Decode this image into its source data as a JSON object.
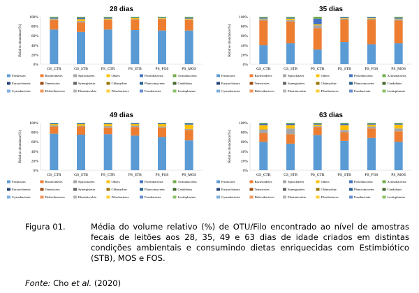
{
  "legend": [
    {
      "name": "Firmicutes",
      "color": "#5b9bd5"
    },
    {
      "name": "Bacteroidetes",
      "color": "#ed7d31"
    },
    {
      "name": "Spirochaetes",
      "color": "#a5a5a5"
    },
    {
      "name": "Others",
      "color": "#ffc000"
    },
    {
      "name": "Proteobacteria",
      "color": "#4472c4"
    },
    {
      "name": "Actinobacteria",
      "color": "#70ad47"
    },
    {
      "name": "Euryarchaeota",
      "color": "#264478"
    },
    {
      "name": "Tenericutes",
      "color": "#9e480e"
    },
    {
      "name": "Synergistetes",
      "color": "#636363"
    },
    {
      "name": "Chlamydiae",
      "color": "#997300"
    },
    {
      "name": "Planctomycetes",
      "color": "#255e91"
    },
    {
      "name": "Candidatus",
      "color": "#43682b"
    },
    {
      "name": "Cyanobacteria",
      "color": "#7cafdd"
    },
    {
      "name": "Deferribacteres",
      "color": "#f1975a"
    },
    {
      "name": "Elusimicrobia",
      "color": "#b7b7b7"
    },
    {
      "name": "Fibrobacteres",
      "color": "#ffcd33"
    },
    {
      "name": "Fusobacteria",
      "color": "#698ed0"
    },
    {
      "name": "Lentisphaerae",
      "color": "#8cc168"
    }
  ],
  "chart_data": [
    {
      "type": "bar",
      "stacked": true,
      "title": "28 dias",
      "ylabel": "Relative abundance(%)",
      "ylim": [
        0,
        100
      ],
      "yticks": [
        "0%",
        "20%",
        "40%",
        "60%",
        "80%",
        "100%"
      ],
      "categories": [
        "GS_CTR",
        "GS_STB",
        "PS_CTR",
        "PS_STB",
        "PS_FOS",
        "PS_MOS"
      ],
      "series": [
        {
          "name": "Firmicutes",
          "values": [
            73,
            68,
            73,
            72,
            71,
            71
          ]
        },
        {
          "name": "Bacteroidetes",
          "values": [
            20,
            20,
            20,
            22,
            24,
            22
          ]
        },
        {
          "name": "Spirochaetes",
          "values": [
            2,
            3,
            1,
            1,
            1,
            1
          ]
        },
        {
          "name": "Others",
          "values": [
            1,
            4,
            2,
            2,
            1,
            2
          ]
        },
        {
          "name": "Proteobacteria",
          "values": [
            2,
            3,
            2,
            1,
            1,
            2
          ]
        },
        {
          "name": "Actinobacteria",
          "values": [
            2,
            2,
            2,
            2,
            2,
            2
          ]
        }
      ]
    },
    {
      "type": "bar",
      "stacked": true,
      "title": "35 dias",
      "ylabel": "Relative abundance(%)",
      "ylim": [
        0,
        100
      ],
      "yticks": [
        "0%",
        "20%",
        "40%",
        "60%",
        "80%",
        "100%"
      ],
      "categories": [
        "GS_CTR",
        "GS_STB",
        "PS_CTR",
        "PS_STB",
        "PS_FOS",
        "PS_MOS"
      ],
      "series": [
        {
          "name": "Firmicutes",
          "values": [
            40,
            44,
            31,
            47,
            42,
            44
          ]
        },
        {
          "name": "Bacteroidetes",
          "values": [
            52,
            46,
            45,
            47,
            52,
            48
          ]
        },
        {
          "name": "Spirochaetes",
          "values": [
            3,
            3,
            6,
            2,
            2,
            3
          ]
        },
        {
          "name": "Others",
          "values": [
            1,
            3,
            2,
            1,
            1,
            1
          ]
        },
        {
          "name": "Proteobacteria",
          "values": [
            2,
            2,
            12,
            2,
            2,
            2
          ]
        },
        {
          "name": "Actinobacteria",
          "values": [
            2,
            2,
            4,
            1,
            1,
            2
          ]
        }
      ]
    },
    {
      "type": "bar",
      "stacked": true,
      "title": "49 dias",
      "ylabel": "Relative abundance(%)",
      "ylim": [
        0,
        100
      ],
      "yticks": [
        "0%",
        "20%",
        "40%",
        "60%",
        "80%",
        "100%"
      ],
      "categories": [
        "GS_CTR",
        "GS_STB",
        "PS_CTR",
        "PS_STB",
        "PS_FOS",
        "PS_MOS"
      ],
      "series": [
        {
          "name": "Firmicutes",
          "values": [
            77,
            75,
            76,
            73,
            70,
            63
          ]
        },
        {
          "name": "Bacteroidetes",
          "values": [
            15,
            17,
            14,
            18,
            20,
            22
          ]
        },
        {
          "name": "Spirochaetes",
          "values": [
            3,
            2,
            3,
            3,
            2,
            2
          ]
        },
        {
          "name": "Others",
          "values": [
            2,
            3,
            4,
            3,
            5,
            9
          ]
        },
        {
          "name": "Proteobacteria",
          "values": [
            2,
            2,
            2,
            2,
            2,
            3
          ]
        },
        {
          "name": "Actinobacteria",
          "values": [
            1,
            1,
            1,
            1,
            1,
            1
          ]
        }
      ]
    },
    {
      "type": "bar",
      "stacked": true,
      "title": "63 dias",
      "ylabel": "Relative abundance(%)",
      "ylim": [
        0,
        100
      ],
      "yticks": [
        "0%",
        "20%",
        "40%",
        "60%",
        "80%",
        "100%"
      ],
      "categories": [
        "GS_CTR",
        "GS_STB",
        "PS_CTR",
        "PS_STB",
        "PS_FOS",
        "PS_MOS"
      ],
      "series": [
        {
          "name": "Firmicutes",
          "values": [
            60,
            56,
            74,
            62,
            68,
            60
          ]
        },
        {
          "name": "Bacteroidetes",
          "values": [
            18,
            20,
            17,
            18,
            20,
            22
          ]
        },
        {
          "name": "Spirochaetes",
          "values": [
            8,
            12,
            2,
            5,
            4,
            6
          ]
        },
        {
          "name": "Others",
          "values": [
            9,
            7,
            3,
            10,
            4,
            8
          ]
        },
        {
          "name": "Proteobacteria",
          "values": [
            3,
            3,
            2,
            3,
            2,
            2
          ]
        },
        {
          "name": "Actinobacteria",
          "values": [
            2,
            2,
            2,
            2,
            2,
            2
          ]
        }
      ]
    }
  ],
  "caption": {
    "label": "Figura 01.",
    "text": "Média do volume relativo (%) de OTU/Filo encontrado ao nível de amostras fecais de leitões aos 28, 35, 49 e 63 dias de idade criados em distintas condições ambientais e consumindo dietas enriquecidas com Estimbiótico (STB), MOS e FOS."
  },
  "source": {
    "prefix": "Fonte:",
    "author": "Cho",
    "etal": "et al.",
    "year": "(2020)"
  }
}
